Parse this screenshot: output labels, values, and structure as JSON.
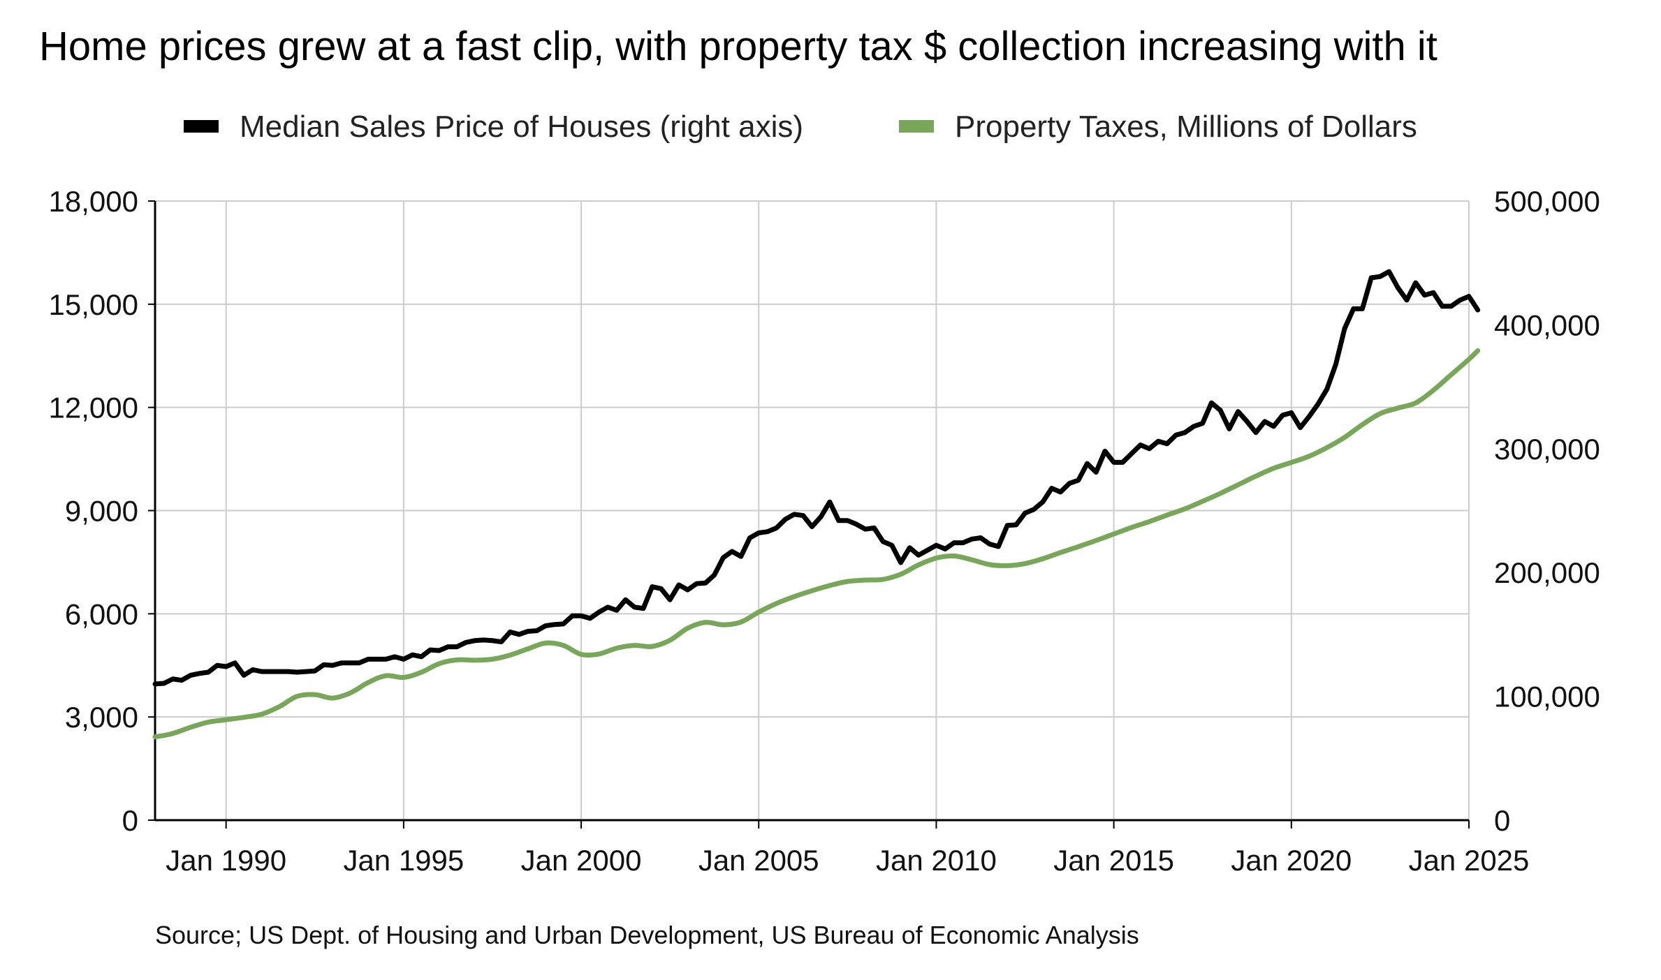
{
  "chart_data": {
    "type": "line",
    "title": "Home prices grew at a fast clip, with property tax $ collection increasing with it",
    "source": "Source; US Dept. of Housing and Urban Development, US Bureau of Economic Analysis",
    "x_range": [
      1988.0,
      2025.0
    ],
    "x_ticks": [
      1990,
      1995,
      2000,
      2005,
      2010,
      2015,
      2020,
      2025
    ],
    "x_tick_labels": [
      "Jan 1990",
      "Jan 1995",
      "Jan 2000",
      "Jan 2005",
      "Jan 2010",
      "Jan 2015",
      "Jan 2020",
      "Jan 2025"
    ],
    "y_left": {
      "range": [
        0,
        18000
      ],
      "ticks": [
        0,
        3000,
        6000,
        9000,
        12000,
        15000,
        18000
      ],
      "tick_labels": [
        "0",
        "3,000",
        "6,000",
        "9,000",
        "12,000",
        "15,000",
        "18,000"
      ]
    },
    "y_right": {
      "range": [
        0,
        500000
      ],
      "ticks": [
        0,
        100000,
        200000,
        300000,
        400000,
        500000
      ],
      "tick_labels": [
        "0",
        "100,000",
        "200,000",
        "300,000",
        "400,000",
        "500,000"
      ]
    },
    "grid": true,
    "legend_position": "top",
    "series": [
      {
        "name": "Median Sales Price of Houses (right axis)",
        "axis": "right",
        "color": "#000000",
        "points": [
          [
            1988.0,
            110000
          ],
          [
            1988.25,
            110500
          ],
          [
            1988.5,
            114000
          ],
          [
            1988.75,
            113000
          ],
          [
            1989.0,
            117000
          ],
          [
            1989.25,
            118500
          ],
          [
            1989.5,
            119500
          ],
          [
            1989.75,
            125000
          ],
          [
            1990.0,
            124000
          ],
          [
            1990.25,
            127000
          ],
          [
            1990.5,
            117000
          ],
          [
            1990.75,
            121500
          ],
          [
            1991.0,
            120000
          ],
          [
            1991.25,
            120000
          ],
          [
            1991.5,
            120000
          ],
          [
            1991.75,
            120000
          ],
          [
            1992.0,
            119500
          ],
          [
            1992.25,
            120000
          ],
          [
            1992.5,
            120500
          ],
          [
            1992.75,
            125500
          ],
          [
            1993.0,
            125000
          ],
          [
            1993.25,
            127000
          ],
          [
            1993.5,
            127000
          ],
          [
            1993.75,
            127000
          ],
          [
            1994.0,
            130000
          ],
          [
            1994.25,
            130000
          ],
          [
            1994.5,
            130000
          ],
          [
            1994.75,
            132000
          ],
          [
            1995.0,
            130000
          ],
          [
            1995.25,
            133500
          ],
          [
            1995.5,
            132000
          ],
          [
            1995.75,
            137500
          ],
          [
            1996.0,
            137000
          ],
          [
            1996.25,
            140000
          ],
          [
            1996.5,
            140000
          ],
          [
            1996.75,
            143500
          ],
          [
            1997.0,
            145000
          ],
          [
            1997.25,
            145500
          ],
          [
            1997.5,
            145000
          ],
          [
            1997.75,
            144000
          ],
          [
            1998.0,
            152000
          ],
          [
            1998.25,
            150000
          ],
          [
            1998.5,
            152500
          ],
          [
            1998.75,
            153000
          ],
          [
            1999.0,
            157000
          ],
          [
            1999.25,
            158000
          ],
          [
            1999.5,
            158500
          ],
          [
            1999.75,
            165000
          ],
          [
            2000.0,
            165000
          ],
          [
            2000.25,
            163000
          ],
          [
            2000.5,
            168000
          ],
          [
            2000.75,
            172000
          ],
          [
            2001.0,
            169500
          ],
          [
            2001.25,
            178000
          ],
          [
            2001.5,
            172000
          ],
          [
            2001.75,
            171000
          ],
          [
            2002.0,
            188500
          ],
          [
            2002.25,
            187000
          ],
          [
            2002.5,
            178000
          ],
          [
            2002.75,
            190000
          ],
          [
            2003.0,
            186000
          ],
          [
            2003.25,
            191000
          ],
          [
            2003.5,
            191500
          ],
          [
            2003.75,
            198000
          ],
          [
            2004.0,
            212000
          ],
          [
            2004.25,
            217000
          ],
          [
            2004.5,
            213000
          ],
          [
            2004.75,
            228000
          ],
          [
            2005.0,
            232000
          ],
          [
            2005.25,
            233000
          ],
          [
            2005.5,
            236000
          ],
          [
            2005.75,
            243000
          ],
          [
            2006.0,
            247000
          ],
          [
            2006.25,
            246000
          ],
          [
            2006.5,
            237000
          ],
          [
            2006.75,
            245000
          ],
          [
            2007.0,
            257000
          ],
          [
            2007.25,
            242000
          ],
          [
            2007.5,
            242000
          ],
          [
            2007.75,
            239000
          ],
          [
            2008.0,
            235000
          ],
          [
            2008.25,
            236000
          ],
          [
            2008.5,
            225000
          ],
          [
            2008.75,
            222000
          ],
          [
            2009.0,
            208000
          ],
          [
            2009.25,
            220000
          ],
          [
            2009.5,
            214000
          ],
          [
            2009.75,
            218000
          ],
          [
            2010.0,
            222000
          ],
          [
            2010.25,
            219000
          ],
          [
            2010.5,
            224000
          ],
          [
            2010.75,
            224000
          ],
          [
            2011.0,
            227000
          ],
          [
            2011.25,
            228000
          ],
          [
            2011.5,
            223000
          ],
          [
            2011.75,
            221000
          ],
          [
            2012.0,
            238000
          ],
          [
            2012.25,
            238500
          ],
          [
            2012.5,
            248000
          ],
          [
            2012.75,
            251000
          ],
          [
            2013.0,
            257000
          ],
          [
            2013.25,
            268000
          ],
          [
            2013.5,
            265000
          ],
          [
            2013.75,
            272000
          ],
          [
            2014.0,
            274500
          ],
          [
            2014.25,
            288000
          ],
          [
            2014.5,
            281000
          ],
          [
            2014.75,
            298000
          ],
          [
            2015.0,
            289000
          ],
          [
            2015.25,
            289000
          ],
          [
            2015.5,
            296000
          ],
          [
            2015.75,
            303000
          ],
          [
            2016.0,
            300000
          ],
          [
            2016.25,
            306000
          ],
          [
            2016.5,
            304000
          ],
          [
            2016.75,
            311000
          ],
          [
            2017.0,
            313000
          ],
          [
            2017.25,
            318000
          ],
          [
            2017.5,
            320500
          ],
          [
            2017.75,
            337000
          ],
          [
            2018.0,
            331000
          ],
          [
            2018.25,
            316000
          ],
          [
            2018.5,
            330000
          ],
          [
            2018.75,
            322000
          ],
          [
            2019.0,
            313000
          ],
          [
            2019.25,
            322000
          ],
          [
            2019.5,
            318000
          ],
          [
            2019.75,
            327000
          ],
          [
            2020.0,
            329000
          ],
          [
            2020.25,
            317000
          ],
          [
            2020.5,
            326000
          ],
          [
            2020.75,
            336000
          ],
          [
            2021.0,
            348000
          ],
          [
            2021.25,
            368000
          ],
          [
            2021.5,
            397000
          ],
          [
            2021.75,
            413000
          ],
          [
            2022.0,
            413000
          ],
          [
            2022.25,
            438000
          ],
          [
            2022.5,
            439000
          ],
          [
            2022.75,
            443000
          ],
          [
            2023.0,
            430000
          ],
          [
            2023.25,
            420000
          ],
          [
            2023.5,
            434000
          ],
          [
            2023.75,
            424000
          ],
          [
            2024.0,
            426000
          ],
          [
            2024.25,
            415000
          ],
          [
            2024.5,
            415000
          ],
          [
            2024.75,
            420000
          ],
          [
            2025.0,
            423000
          ],
          [
            2025.25,
            412000
          ]
        ]
      },
      {
        "name": "Property Taxes, Millions of Dollars",
        "axis": "left",
        "color": "#78a75a",
        "points": [
          [
            1988.0,
            2420
          ],
          [
            1988.5,
            2520
          ],
          [
            1989.0,
            2700
          ],
          [
            1989.5,
            2850
          ],
          [
            1990.0,
            2920
          ],
          [
            1990.5,
            2990
          ],
          [
            1991.0,
            3080
          ],
          [
            1991.5,
            3300
          ],
          [
            1992.0,
            3600
          ],
          [
            1992.5,
            3650
          ],
          [
            1993.0,
            3550
          ],
          [
            1993.5,
            3700
          ],
          [
            1994.0,
            4000
          ],
          [
            1994.5,
            4200
          ],
          [
            1995.0,
            4150
          ],
          [
            1995.5,
            4300
          ],
          [
            1996.0,
            4550
          ],
          [
            1996.5,
            4660
          ],
          [
            1997.0,
            4650
          ],
          [
            1997.5,
            4680
          ],
          [
            1998.0,
            4800
          ],
          [
            1998.5,
            4980
          ],
          [
            1999.0,
            5150
          ],
          [
            1999.5,
            5080
          ],
          [
            2000.0,
            4820
          ],
          [
            2000.5,
            4830
          ],
          [
            2001.0,
            5000
          ],
          [
            2001.5,
            5080
          ],
          [
            2002.0,
            5050
          ],
          [
            2002.5,
            5230
          ],
          [
            2003.0,
            5580
          ],
          [
            2003.5,
            5750
          ],
          [
            2004.0,
            5680
          ],
          [
            2004.5,
            5760
          ],
          [
            2005.0,
            6050
          ],
          [
            2005.5,
            6300
          ],
          [
            2006.0,
            6500
          ],
          [
            2006.5,
            6670
          ],
          [
            2007.0,
            6820
          ],
          [
            2007.5,
            6940
          ],
          [
            2008.0,
            6980
          ],
          [
            2008.5,
            7000
          ],
          [
            2009.0,
            7150
          ],
          [
            2009.5,
            7420
          ],
          [
            2010.0,
            7620
          ],
          [
            2010.5,
            7680
          ],
          [
            2011.0,
            7570
          ],
          [
            2011.5,
            7430
          ],
          [
            2012.0,
            7400
          ],
          [
            2012.5,
            7460
          ],
          [
            2013.0,
            7600
          ],
          [
            2013.5,
            7780
          ],
          [
            2014.0,
            7950
          ],
          [
            2014.5,
            8130
          ],
          [
            2015.0,
            8320
          ],
          [
            2015.5,
            8510
          ],
          [
            2016.0,
            8680
          ],
          [
            2016.5,
            8870
          ],
          [
            2017.0,
            9050
          ],
          [
            2017.5,
            9270
          ],
          [
            2018.0,
            9500
          ],
          [
            2018.5,
            9750
          ],
          [
            2019.0,
            10000
          ],
          [
            2019.5,
            10230
          ],
          [
            2020.0,
            10400
          ],
          [
            2020.5,
            10580
          ],
          [
            2021.0,
            10830
          ],
          [
            2021.5,
            11130
          ],
          [
            2022.0,
            11500
          ],
          [
            2022.5,
            11820
          ],
          [
            2023.0,
            11980
          ],
          [
            2023.5,
            12130
          ],
          [
            2024.0,
            12500
          ],
          [
            2024.5,
            12950
          ],
          [
            2025.0,
            13400
          ],
          [
            2025.25,
            13650
          ]
        ]
      }
    ]
  }
}
